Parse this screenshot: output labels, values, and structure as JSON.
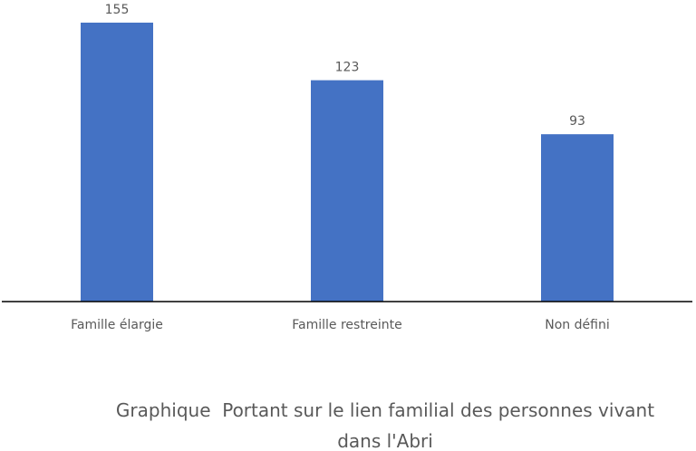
{
  "chart_data": {
    "type": "bar",
    "title": "Graphique  Portant sur le lien familial des personnes vivant dans l'Abri",
    "categories": [
      "Famille élargie",
      "Famille restreinte",
      "Non défini"
    ],
    "values": [
      155,
      123,
      93
    ],
    "color": "#4472c4"
  }
}
